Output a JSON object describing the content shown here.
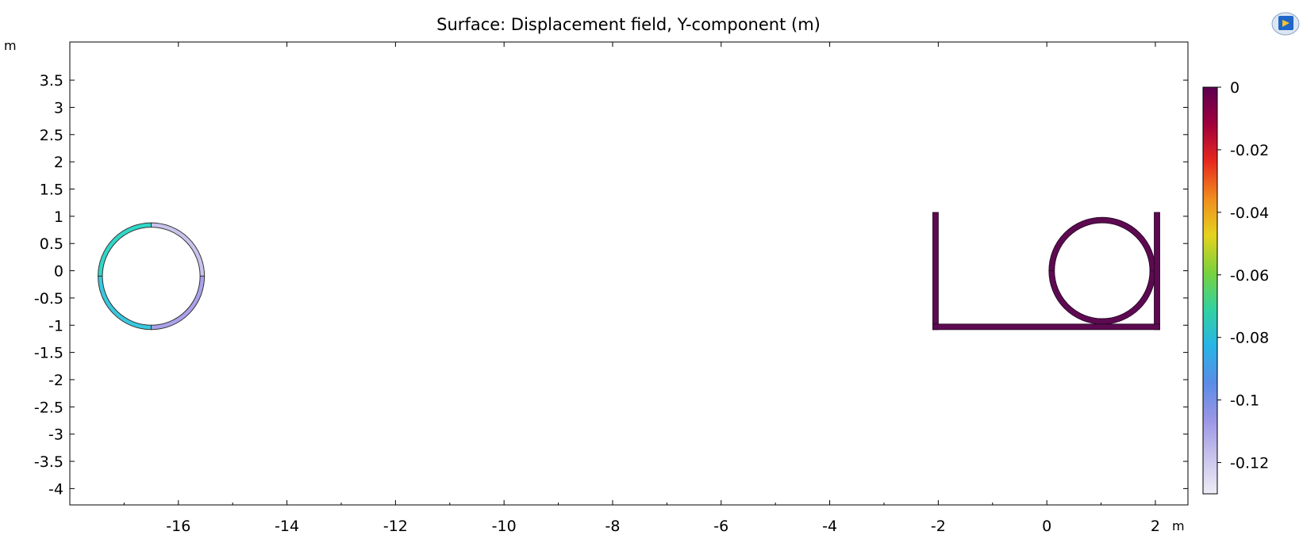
{
  "chart_data": {
    "type": "surface",
    "title": "Surface: Displacement field, Y-component (m)",
    "x_unit": "m",
    "y_unit": "m",
    "xlim": [
      -18.0,
      2.6
    ],
    "ylim": [
      -4.3,
      4.2
    ],
    "x_ticks": [
      -16,
      -14,
      -12,
      -10,
      -8,
      -6,
      -4,
      -2,
      0,
      2
    ],
    "y_ticks": [
      3.5,
      3,
      2.5,
      2,
      1.5,
      1,
      0.5,
      0,
      -0.5,
      -1,
      -1.5,
      -2,
      -2.5,
      -3,
      -3.5,
      -4
    ],
    "grid": false,
    "colorbar": {
      "range": [
        -0.13,
        0
      ],
      "ticks": [
        0,
        -0.02,
        -0.04,
        -0.06,
        -0.08,
        -0.1,
        -0.12
      ],
      "colormap": [
        "#5c0050",
        "#a0003c",
        "#e8281e",
        "#f08c1e",
        "#e6d21e",
        "#7ad23c",
        "#32d2a0",
        "#28b4e6",
        "#5a8ce6",
        "#9b96e6",
        "#c8c3ec",
        "#eeecf6"
      ],
      "placement": "right"
    },
    "shapes": [
      {
        "name": "left-ring",
        "kind": "ring",
        "center": [
          -16.5,
          -0.1
        ],
        "outer_radius": 0.98,
        "inner_radius": 0.9,
        "segments": [
          {
            "quadrant": "upper-left",
            "value": -0.082,
            "color": "#2fd7c8"
          },
          {
            "quadrant": "lower-left",
            "value": -0.085,
            "color": "#38c8e0"
          },
          {
            "quadrant": "upper-right",
            "value": -0.118,
            "color": "#c9c4ed"
          },
          {
            "quadrant": "lower-right",
            "value": -0.112,
            "color": "#a9a1ea"
          }
        ]
      },
      {
        "name": "right-ring",
        "kind": "ring",
        "center": [
          1.02,
          0.0
        ],
        "outer_radius": 0.98,
        "inner_radius": 0.88,
        "value": 0,
        "color": "#5e0a52"
      },
      {
        "name": "u-channel",
        "kind": "u-channel",
        "x_left": -2.1,
        "x_right": 2.08,
        "y_bottom": -1.08,
        "y_top": 1.07,
        "thickness": 0.1,
        "value": 0,
        "color": "#5e0a52"
      }
    ]
  },
  "toolbar": {
    "icon": "comsol-logo-icon"
  }
}
